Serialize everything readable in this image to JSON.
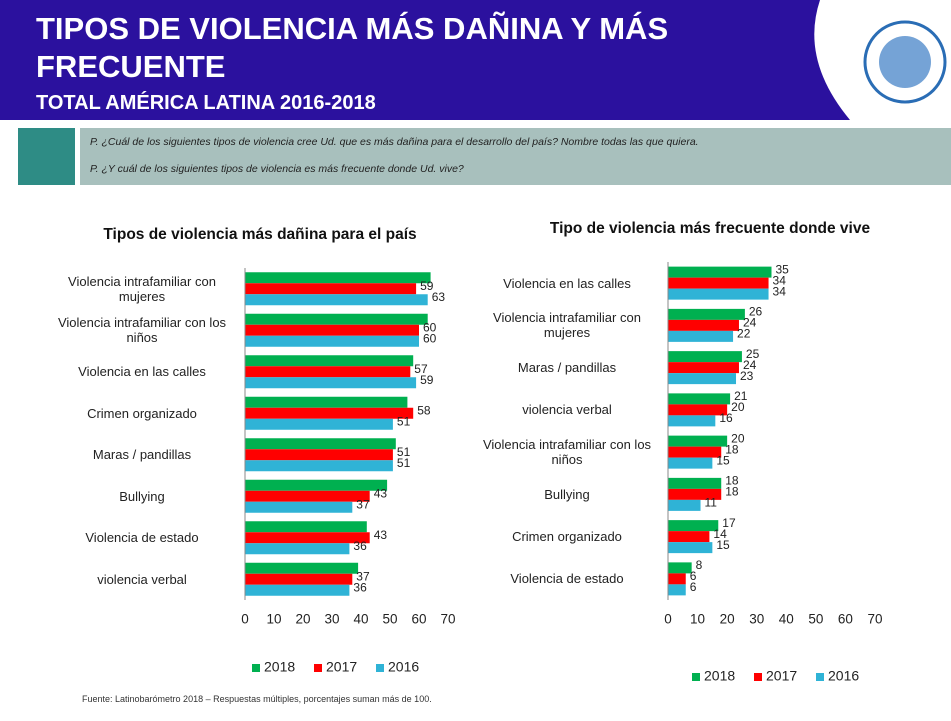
{
  "header": {
    "title": "TIPOS DE VIOLENCIA MÁS DAÑINA Y MÁS FRECUENTE",
    "subtitle": "TOTAL AMÉRICA LATINA 2016-2018",
    "questions": [
      "P. ¿Cuál de los siguientes tipos de violencia cree Ud. que es más dañina para el desarrollo del país? Nombre todas las que quiera.",
      "P. ¿Y cuál de los siguientes tipos de violencia es más frecuente donde Ud. vive?"
    ]
  },
  "chart_data": [
    {
      "type": "bar",
      "orientation": "horizontal",
      "title": "Tipos de violencia más dañina para el país",
      "categories": [
        "Violencia intrafamiliar con mujeres",
        "Violencia intrafamiliar con los niños",
        "Violencia en las calles",
        "Crimen organizado",
        "Maras / pandillas",
        "Bullying",
        "Violencia de estado",
        "violencia verbal"
      ],
      "series": [
        {
          "name": "2018",
          "color": "#00b050",
          "data_labels": false,
          "values": [
            64,
            63,
            58,
            56,
            52,
            49,
            42,
            39
          ]
        },
        {
          "name": "2017",
          "color": "#ff0000",
          "data_labels": true,
          "values": [
            59,
            60,
            57,
            58,
            51,
            43,
            43,
            37
          ]
        },
        {
          "name": "2016",
          "color": "#2fb3d6",
          "data_labels": true,
          "values": [
            63,
            60,
            59,
            51,
            51,
            37,
            36,
            36
          ]
        }
      ],
      "xlim": [
        0,
        70
      ],
      "xticks": [
        0,
        10,
        20,
        30,
        40,
        50,
        60,
        70
      ],
      "grid": false,
      "legend": "bottom"
    },
    {
      "type": "bar",
      "orientation": "horizontal",
      "title": "Tipo de violencia más frecuente donde vive",
      "categories": [
        "Violencia en las calles",
        "Violencia intrafamiliar con mujeres",
        "Maras / pandillas",
        "violencia verbal",
        "Violencia intrafamiliar con los niños",
        "Bullying",
        "Crimen organizado",
        "Violencia de estado"
      ],
      "series": [
        {
          "name": "2018",
          "color": "#00b050",
          "data_labels": true,
          "values": [
            35,
            26,
            25,
            21,
            20,
            18,
            17,
            8
          ]
        },
        {
          "name": "2017",
          "color": "#ff0000",
          "data_labels": true,
          "values": [
            34,
            24,
            24,
            20,
            18,
            18,
            14,
            6
          ]
        },
        {
          "name": "2016",
          "color": "#2fb3d6",
          "data_labels": true,
          "values": [
            34,
            22,
            23,
            16,
            15,
            11,
            15,
            6
          ]
        }
      ],
      "xlim": [
        0,
        70
      ],
      "xticks": [
        0,
        10,
        20,
        30,
        40,
        50,
        60,
        70
      ],
      "grid": false,
      "legend": "bottom"
    }
  ],
  "footer": {
    "source": "Fuente: Latinobarómetro 2018 – Respuestas múltiples, porcentajes suman más de 100."
  }
}
